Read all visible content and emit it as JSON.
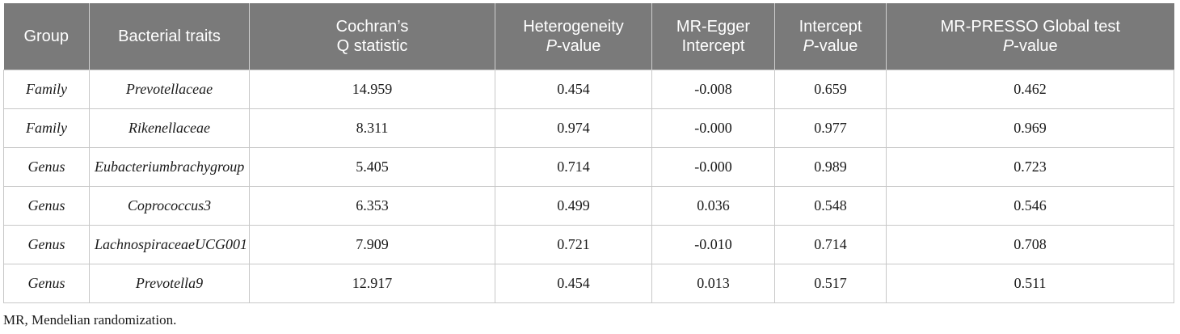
{
  "table": {
    "headers": [
      {
        "line1": "Group",
        "line2": "",
        "line2_italic_part": "",
        "line2_rest": ""
      },
      {
        "line1": "Bacterial traits",
        "line2": "",
        "line2_italic_part": "",
        "line2_rest": ""
      },
      {
        "line1": "Cochran’s",
        "line2": "Q statistic",
        "line2_italic_part": "",
        "line2_rest": ""
      },
      {
        "line1": "Heterogeneity",
        "line2": "",
        "line2_italic_part": "P",
        "line2_rest": "-value"
      },
      {
        "line1": "MR-Egger",
        "line2": "Intercept",
        "line2_italic_part": "",
        "line2_rest": ""
      },
      {
        "line1": "Intercept",
        "line2": "",
        "line2_italic_part": "P",
        "line2_rest": "-value"
      },
      {
        "line1": "MR-PRESSO Global test",
        "line2": "",
        "line2_italic_part": "P",
        "line2_rest": "-value"
      }
    ],
    "rows": [
      [
        "Family",
        "Prevotellaceae",
        "14.959",
        "0.454",
        "-0.008",
        "0.659",
        "0.462"
      ],
      [
        "Family",
        "Rikenellaceae",
        "8.311",
        "0.974",
        "-0.000",
        "0.977",
        "0.969"
      ],
      [
        "Genus",
        "Eubacteriumbrachygroup",
        "5.405",
        "0.714",
        "-0.000",
        "0.989",
        "0.723"
      ],
      [
        "Genus",
        "Coprococcus3",
        "6.353",
        "0.499",
        "0.036",
        "0.548",
        "0.546"
      ],
      [
        "Genus",
        "LachnospiraceaeUCG001",
        "7.909",
        "0.721",
        "-0.010",
        "0.714",
        "0.708"
      ],
      [
        "Genus",
        "Prevotella9",
        "12.917",
        "0.454",
        "0.013",
        "0.517",
        "0.511"
      ]
    ]
  },
  "footnote": "MR, Mendelian randomization.",
  "colors": {
    "header_bg": "#7a7a7a",
    "header_text": "#ffffff",
    "border": "#c8c8c8"
  }
}
